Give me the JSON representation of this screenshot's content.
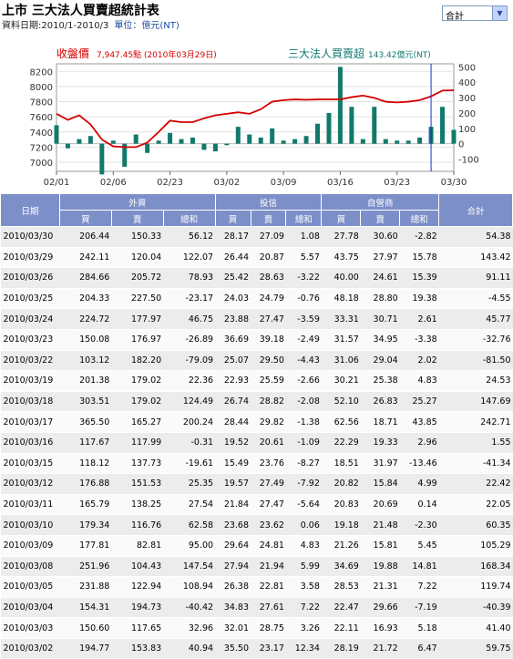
{
  "header": {
    "title": "上市 三大法人買賣超統計表",
    "period": "資料日期:2010/1-2010/3",
    "unit": "單位：億元(NT)",
    "select_value": "合計"
  },
  "chart_data": {
    "type": "line+bar",
    "left_label": "收盤價",
    "left_value": "7,947.45點 (2010年03月29日)",
    "right_label": "三大法人買賣超",
    "right_value": "143.42億元(NT)",
    "left_axis": {
      "ticks": [
        7000,
        7200,
        7400,
        7600,
        7800,
        8000,
        8200
      ],
      "ylim": [
        6880,
        8300
      ]
    },
    "right_axis": {
      "ticks": [
        -100,
        0,
        100,
        200,
        300,
        400,
        500
      ],
      "ylim": [
        -180,
        520
      ]
    },
    "x_tick_labels": [
      "02/01",
      "02/06",
      "02/23",
      "03/02",
      "03/09",
      "03/16",
      "03/23",
      "03/30"
    ],
    "x_tick_index": [
      0,
      5,
      10,
      15,
      20,
      25,
      30,
      35
    ],
    "close_series": [
      7640,
      7560,
      7620,
      7500,
      7300,
      7210,
      7200,
      7200,
      7260,
      7400,
      7550,
      7530,
      7530,
      7580,
      7620,
      7640,
      7660,
      7640,
      7700,
      7800,
      7820,
      7830,
      7825,
      7830,
      7830,
      7830,
      7860,
      7880,
      7850,
      7800,
      7790,
      7800,
      7820,
      7870,
      7947,
      7950
    ],
    "net_series": [
      120,
      -30,
      30,
      50,
      -200,
      20,
      -150,
      60,
      -60,
      20,
      70,
      30,
      40,
      -40,
      -50,
      -10,
      110,
      60,
      40,
      100,
      20,
      30,
      50,
      130,
      200,
      500,
      240,
      30,
      240,
      30,
      20,
      20,
      40,
      110,
      240,
      90
    ]
  },
  "table": {
    "headers": {
      "date": "日期",
      "foreign": "外資",
      "trust": "投信",
      "dealer": "自營商",
      "total": "合計",
      "buy": "買",
      "sell": "賣",
      "sum": "總和"
    },
    "rows": [
      [
        "2010/03/30",
        "206.44",
        "150.33",
        "56.12",
        "28.17",
        "27.09",
        "1.08",
        "27.78",
        "30.60",
        "-2.82",
        "54.38"
      ],
      [
        "2010/03/29",
        "242.11",
        "120.04",
        "122.07",
        "26.44",
        "20.87",
        "5.57",
        "43.75",
        "27.97",
        "15.78",
        "143.42"
      ],
      [
        "2010/03/26",
        "284.66",
        "205.72",
        "78.93",
        "25.42",
        "28.63",
        "-3.22",
        "40.00",
        "24.61",
        "15.39",
        "91.11"
      ],
      [
        "2010/03/25",
        "204.33",
        "227.50",
        "-23.17",
        "24.03",
        "24.79",
        "-0.76",
        "48.18",
        "28.80",
        "19.38",
        "-4.55"
      ],
      [
        "2010/03/24",
        "224.72",
        "177.97",
        "46.75",
        "23.88",
        "27.47",
        "-3.59",
        "33.31",
        "30.71",
        "2.61",
        "45.77"
      ],
      [
        "2010/03/23",
        "150.08",
        "176.97",
        "-26.89",
        "36.69",
        "39.18",
        "-2.49",
        "31.57",
        "34.95",
        "-3.38",
        "-32.76"
      ],
      [
        "2010/03/22",
        "103.12",
        "182.20",
        "-79.09",
        "25.07",
        "29.50",
        "-4.43",
        "31.06",
        "29.04",
        "2.02",
        "-81.50"
      ],
      [
        "2010/03/19",
        "201.38",
        "179.02",
        "22.36",
        "22.93",
        "25.59",
        "-2.66",
        "30.21",
        "25.38",
        "4.83",
        "24.53"
      ],
      [
        "2010/03/18",
        "303.51",
        "179.02",
        "124.49",
        "26.74",
        "28.82",
        "-2.08",
        "52.10",
        "26.83",
        "25.27",
        "147.69"
      ],
      [
        "2010/03/17",
        "365.50",
        "165.27",
        "200.24",
        "28.44",
        "29.82",
        "-1.38",
        "62.56",
        "18.71",
        "43.85",
        "242.71"
      ],
      [
        "2010/03/16",
        "117.67",
        "117.99",
        "-0.31",
        "19.52",
        "20.61",
        "-1.09",
        "22.29",
        "19.33",
        "2.96",
        "1.55"
      ],
      [
        "2010/03/15",
        "118.12",
        "137.73",
        "-19.61",
        "15.49",
        "23.76",
        "-8.27",
        "18.51",
        "31.97",
        "-13.46",
        "-41.34"
      ],
      [
        "2010/03/12",
        "176.88",
        "151.53",
        "25.35",
        "19.57",
        "27.49",
        "-7.92",
        "20.82",
        "15.84",
        "4.99",
        "22.42"
      ],
      [
        "2010/03/11",
        "165.79",
        "138.25",
        "27.54",
        "21.84",
        "27.47",
        "-5.64",
        "20.83",
        "20.69",
        "0.14",
        "22.05"
      ],
      [
        "2010/03/10",
        "179.34",
        "116.76",
        "62.58",
        "23.68",
        "23.62",
        "0.06",
        "19.18",
        "21.48",
        "-2.30",
        "60.35"
      ],
      [
        "2010/03/09",
        "177.81",
        "82.81",
        "95.00",
        "29.64",
        "24.81",
        "4.83",
        "21.26",
        "15.81",
        "5.45",
        "105.29"
      ],
      [
        "2010/03/08",
        "251.96",
        "104.43",
        "147.54",
        "27.94",
        "21.94",
        "5.99",
        "34.69",
        "19.88",
        "14.81",
        "168.34"
      ],
      [
        "2010/03/05",
        "231.88",
        "122.94",
        "108.94",
        "26.38",
        "22.81",
        "3.58",
        "28.53",
        "21.31",
        "7.22",
        "119.74"
      ],
      [
        "2010/03/04",
        "154.31",
        "194.73",
        "-40.42",
        "34.83",
        "27.61",
        "7.22",
        "22.47",
        "29.66",
        "-7.19",
        "-40.39"
      ],
      [
        "2010/03/03",
        "150.60",
        "117.65",
        "32.96",
        "32.01",
        "28.75",
        "3.26",
        "22.11",
        "16.93",
        "5.18",
        "41.40"
      ],
      [
        "2010/03/02",
        "194.77",
        "153.83",
        "40.94",
        "35.50",
        "23.17",
        "12.34",
        "28.19",
        "21.72",
        "6.47",
        "59.75"
      ]
    ]
  },
  "colors": {
    "close_line": "#d40000",
    "net_bar": "#117a6b",
    "header_bg": "#7d8fc8",
    "right_label": "#127a70",
    "left_label": "#d40000"
  }
}
